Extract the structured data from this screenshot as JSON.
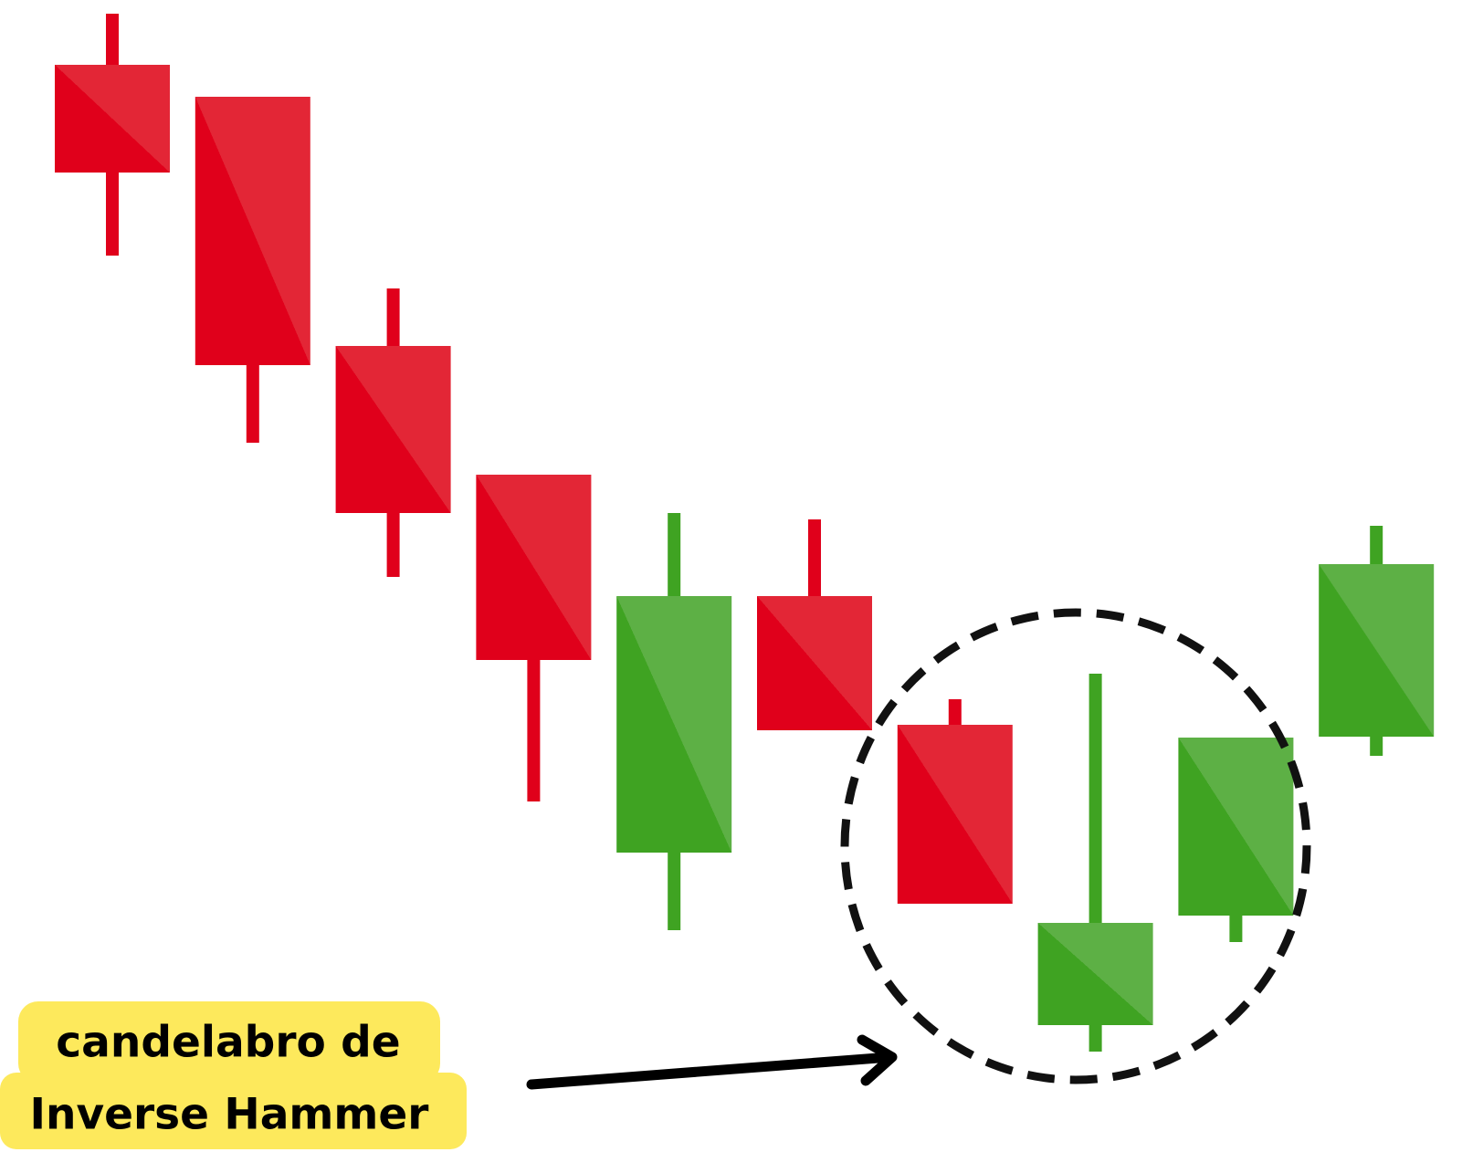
{
  "chart_data": {
    "type": "candlestick",
    "open": [
      121.4,
      117.9,
      90.6,
      76.5,
      35.1,
      63.2,
      49.1,
      16.2,
      28.2,
      47.8
    ],
    "high": [
      127.0,
      117.9,
      96.9,
      76.5,
      72.3,
      71.6,
      51.9,
      54.7,
      47.7,
      70.9
    ],
    "low": [
      100.5,
      80.0,
      65.3,
      40.7,
      26.6,
      48.5,
      29.5,
      13.3,
      25.3,
      45.7
    ],
    "close": [
      109.6,
      88.5,
      72.3,
      56.2,
      63.2,
      48.5,
      29.5,
      27.4,
      47.7,
      66.7
    ],
    "up_color": "#3fa322",
    "up_color_light": "#5db045",
    "down_color": "#e0001b",
    "down_color_light": "#e32636",
    "ylim": [
      0,
      128.5
    ],
    "annotations": [
      "candelabro de",
      "Inverse Hammer"
    ]
  }
}
